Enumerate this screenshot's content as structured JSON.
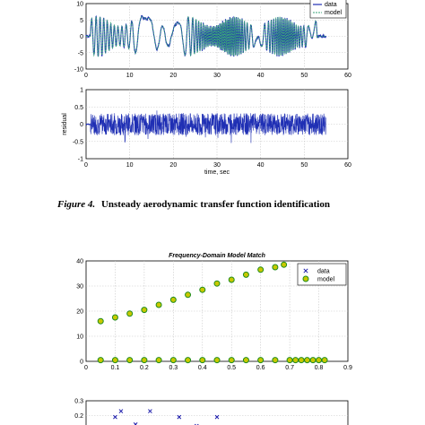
{
  "caption": {
    "label": "Figure 4.",
    "text": "Unsteady aerodynamic transfer function identification"
  },
  "colors": {
    "data": "#1f2fb4",
    "model": "#3aa57a",
    "marker_data": "#1a1aaa",
    "marker_model": "#1e8c1e",
    "marker_model_fill": "#c8c800"
  },
  "chart_data": [
    {
      "type": "line",
      "title": "",
      "xlabel": "",
      "ylabel": "",
      "xlim": [
        0,
        60
      ],
      "ylim": [
        -10,
        10
      ],
      "xticks": [
        "0",
        "10",
        "20",
        "30",
        "40",
        "50",
        "60"
      ],
      "yticks": [
        "10",
        "5",
        "0",
        "-5",
        "-10"
      ],
      "grid": true,
      "legend": "top-right",
      "series": [
        {
          "name": "data",
          "x": [
            0,
            55
          ],
          "note_signal": "oscillating"
        },
        {
          "name": "model"
        }
      ]
    },
    {
      "type": "line",
      "title": "",
      "xlabel": "time, sec",
      "ylabel": "residual",
      "xlim": [
        0,
        60
      ],
      "ylim": [
        -1,
        1
      ],
      "xticks": [
        "0",
        "10",
        "20",
        "30",
        "40",
        "50",
        "60"
      ],
      "yticks": [
        "1",
        "0.5",
        "0",
        "-0.5",
        "-1"
      ],
      "grid": true,
      "series": [
        {
          "name": "",
          "x": [
            0,
            55
          ]
        }
      ]
    },
    {
      "type": "scatter",
      "title": "Frequency-Domain Model Match",
      "xlabel": "",
      "ylabel": "",
      "xlim": [
        0,
        0.9
      ],
      "ylim": [
        0,
        40
      ],
      "xticks": [
        "0",
        "0.1",
        "0.2",
        "0.3",
        "0.4",
        "0.5",
        "0.6",
        "0.7",
        "0.8",
        "0.9"
      ],
      "yticks": [
        "40",
        "30",
        "20",
        "10",
        "0"
      ],
      "grid": true,
      "legend": "top-right",
      "series": [
        {
          "name": "data",
          "x": [
            0.05,
            0.1,
            0.15,
            0.2,
            0.25,
            0.3,
            0.35,
            0.4,
            0.45,
            0.5,
            0.55,
            0.6,
            0.65,
            0.68
          ],
          "y": [
            16,
            17.5,
            19,
            20.5,
            22.5,
            24.5,
            26.5,
            28.5,
            31,
            32.5,
            34.5,
            36.5,
            37.5,
            38.5
          ]
        },
        {
          "name": "model",
          "x": [
            0.05,
            0.1,
            0.15,
            0.2,
            0.25,
            0.3,
            0.35,
            0.4,
            0.45,
            0.5,
            0.55,
            0.6,
            0.65,
            0.68
          ],
          "y": [
            16,
            17.5,
            19,
            20.5,
            22.5,
            24.5,
            26.5,
            28.5,
            31,
            32.5,
            34.5,
            36.5,
            37.5,
            38.5
          ]
        },
        {
          "name": "data",
          "x": [
            0.05,
            0.1,
            0.15,
            0.2,
            0.25,
            0.3,
            0.35,
            0.4,
            0.45,
            0.5,
            0.55,
            0.6,
            0.65,
            0.7,
            0.72,
            0.74,
            0.76,
            0.78,
            0.8,
            0.82
          ],
          "y": [
            0.5,
            0.5,
            0.5,
            0.5,
            0.5,
            0.5,
            0.5,
            0.5,
            0.5,
            0.5,
            0.5,
            0.5,
            0.5,
            0.5,
            0.5,
            0.5,
            0.5,
            0.5,
            0.5,
            0.5
          ]
        },
        {
          "name": "model",
          "x": [
            0.05,
            0.1,
            0.15,
            0.2,
            0.25,
            0.3,
            0.35,
            0.4,
            0.45,
            0.5,
            0.55,
            0.6,
            0.65,
            0.7,
            0.72,
            0.74,
            0.76,
            0.78,
            0.8,
            0.82
          ],
          "y": [
            0.5,
            0.5,
            0.5,
            0.5,
            0.5,
            0.5,
            0.5,
            0.5,
            0.5,
            0.5,
            0.5,
            0.5,
            0.5,
            0.5,
            0.5,
            0.5,
            0.5,
            0.5,
            0.5,
            0.5
          ]
        }
      ]
    },
    {
      "type": "scatter",
      "title": "",
      "xlabel": "",
      "ylabel": "",
      "xlim": [
        0,
        0.9
      ],
      "ylim": [
        0.1,
        0.3
      ],
      "yticks": [
        "0.3",
        "0.2"
      ],
      "grid": true,
      "series": [
        {
          "name": "data",
          "x": [
            0.1,
            0.12,
            0.17,
            0.22,
            0.27,
            0.32,
            0.38,
            0.45,
            0.5
          ],
          "y": [
            0.19,
            0.23,
            0.14,
            0.23,
            0.12,
            0.19,
            0.13,
            0.19,
            0.12
          ]
        }
      ]
    }
  ]
}
